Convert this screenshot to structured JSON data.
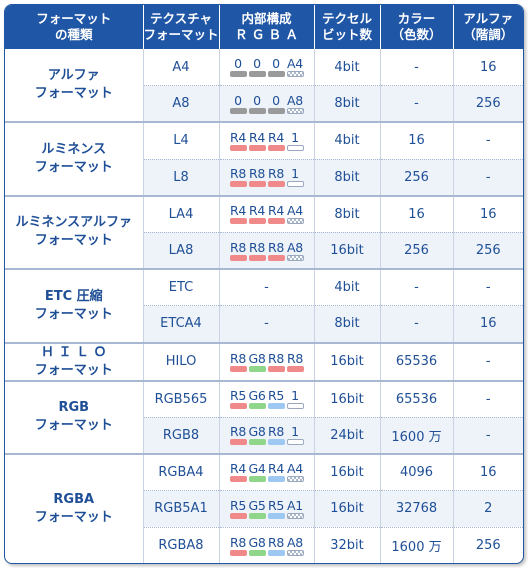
{
  "headers": [
    [
      "フォーマット",
      "の種類"
    ],
    [
      "テクスチャ",
      "フォーマット"
    ],
    [
      "内部構成",
      "Ｒ Ｇ Ｂ Ａ"
    ],
    [
      "テクセル",
      "ビット数"
    ],
    [
      "カラー",
      "（色数）"
    ],
    [
      "アルファ",
      "（階調）"
    ]
  ],
  "swatch_colors": {
    "red": "#f08a8a",
    "green": "#8fd68a",
    "blue": "#9cc8f2",
    "gray": "#9a9a9a",
    "white": "#ffffff",
    "check": "checker"
  },
  "groups": [
    {
      "name": [
        "アルファ",
        "フォーマット"
      ],
      "rows": [
        {
          "fmt": "A4",
          "rgba": [
            [
              "0",
              "gray"
            ],
            [
              "0",
              "gray"
            ],
            [
              "0",
              "gray"
            ],
            [
              "A4",
              "check"
            ]
          ],
          "bits": "4bit",
          "colors": "-",
          "alpha": "16"
        },
        {
          "fmt": "A8",
          "rgba": [
            [
              "0",
              "gray"
            ],
            [
              "0",
              "gray"
            ],
            [
              "0",
              "gray"
            ],
            [
              "A8",
              "check"
            ]
          ],
          "bits": "8bit",
          "colors": "-",
          "alpha": "256"
        }
      ]
    },
    {
      "name": [
        "ルミネンス",
        "フォーマット"
      ],
      "rows": [
        {
          "fmt": "L4",
          "rgba": [
            [
              "R4",
              "red"
            ],
            [
              "R4",
              "red"
            ],
            [
              "R4",
              "red"
            ],
            [
              "1",
              "white"
            ]
          ],
          "bits": "4bit",
          "colors": "16",
          "alpha": "-"
        },
        {
          "fmt": "L8",
          "rgba": [
            [
              "R8",
              "red"
            ],
            [
              "R8",
              "red"
            ],
            [
              "R8",
              "red"
            ],
            [
              "1",
              "white"
            ]
          ],
          "bits": "8bit",
          "colors": "256",
          "alpha": "-"
        }
      ]
    },
    {
      "name": [
        "ルミネンスアルファ",
        "フォーマット"
      ],
      "rows": [
        {
          "fmt": "LA4",
          "rgba": [
            [
              "R4",
              "red"
            ],
            [
              "R4",
              "red"
            ],
            [
              "R4",
              "red"
            ],
            [
              "A4",
              "check"
            ]
          ],
          "bits": "8bit",
          "colors": "16",
          "alpha": "16"
        },
        {
          "fmt": "LA8",
          "rgba": [
            [
              "R8",
              "red"
            ],
            [
              "R8",
              "red"
            ],
            [
              "R8",
              "red"
            ],
            [
              "A8",
              "check"
            ]
          ],
          "bits": "16bit",
          "colors": "256",
          "alpha": "256"
        }
      ]
    },
    {
      "name": [
        "ETC 圧縮",
        "フォーマット"
      ],
      "rows": [
        {
          "fmt": "ETC",
          "rgba_text": "-",
          "bits": "4bit",
          "colors": "-",
          "alpha": "-"
        },
        {
          "fmt": "ETCA4",
          "rgba_text": "-",
          "bits": "8bit",
          "colors": "-",
          "alpha": "16"
        }
      ]
    },
    {
      "name": [
        "Ｈ Ｉ Ｌ Ｏ",
        "フォーマット"
      ],
      "rows": [
        {
          "fmt": "HILO",
          "rgba": [
            [
              "R8",
              "red"
            ],
            [
              "G8",
              "green"
            ],
            [
              "R8",
              "red"
            ],
            [
              "R8",
              "red"
            ]
          ],
          "bits": "16bit",
          "colors": "65536",
          "alpha": "-"
        }
      ]
    },
    {
      "name": [
        "RGB",
        "フォーマット"
      ],
      "rows": [
        {
          "fmt": "RGB565",
          "rgba": [
            [
              "R5",
              "red"
            ],
            [
              "G6",
              "green"
            ],
            [
              "R5",
              "blue"
            ],
            [
              "1",
              "white"
            ]
          ],
          "bits": "16bit",
          "colors": "65536",
          "alpha": "-"
        },
        {
          "fmt": "RGB8",
          "rgba": [
            [
              "R8",
              "red"
            ],
            [
              "G8",
              "green"
            ],
            [
              "R8",
              "blue"
            ],
            [
              "1",
              "white"
            ]
          ],
          "bits": "24bit",
          "colors": "1600 万",
          "alpha": "-"
        }
      ]
    },
    {
      "name": [
        "RGBA",
        "フォーマット"
      ],
      "rows": [
        {
          "fmt": "RGBA4",
          "rgba": [
            [
              "R4",
              "red"
            ],
            [
              "G4",
              "green"
            ],
            [
              "R4",
              "blue"
            ],
            [
              "A4",
              "check"
            ]
          ],
          "bits": "16bit",
          "colors": "4096",
          "alpha": "16"
        },
        {
          "fmt": "RGB5A1",
          "rgba": [
            [
              "R5",
              "red"
            ],
            [
              "G5",
              "green"
            ],
            [
              "R5",
              "blue"
            ],
            [
              "A1",
              "check"
            ]
          ],
          "bits": "16bit",
          "colors": "32768",
          "alpha": "2"
        },
        {
          "fmt": "RGBA8",
          "rgba": [
            [
              "R8",
              "red"
            ],
            [
              "G8",
              "green"
            ],
            [
              "R8",
              "blue"
            ],
            [
              "A8",
              "check"
            ]
          ],
          "bits": "32bit",
          "colors": "1600 万",
          "alpha": "256"
        }
      ]
    }
  ]
}
